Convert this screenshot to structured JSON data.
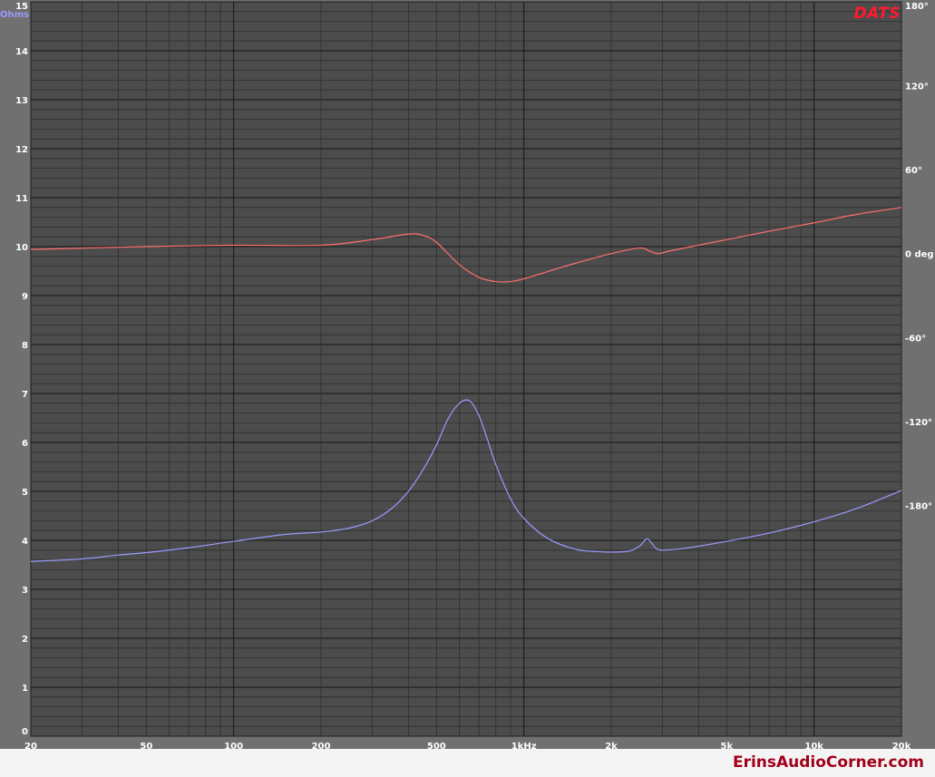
{
  "brand": "DATS",
  "watermark": "ErinsAudioCorner.com",
  "chart_data": {
    "type": "line",
    "x_scale": "log",
    "xlim": [
      20,
      20000
    ],
    "x_ticks": [
      {
        "v": 20,
        "label": "20"
      },
      {
        "v": 50,
        "label": "50"
      },
      {
        "v": 100,
        "label": "100"
      },
      {
        "v": 200,
        "label": "200"
      },
      {
        "v": 500,
        "label": "500"
      },
      {
        "v": 1000,
        "label": "1kHz"
      },
      {
        "v": 2000,
        "label": "2k"
      },
      {
        "v": 5000,
        "label": "5k"
      },
      {
        "v": 10000,
        "label": "10k"
      },
      {
        "v": 20000,
        "label": "20k"
      }
    ],
    "y_left": {
      "label": "Ohms",
      "min": 0,
      "max": 15,
      "ticks": [
        "0",
        "1",
        "2",
        "3",
        "4",
        "5",
        "6",
        "7",
        "8",
        "9",
        "10",
        "11",
        "12",
        "13",
        "14",
        "15"
      ]
    },
    "y_right": {
      "label": "deg",
      "min": -345,
      "max": 180,
      "ticks": [
        {
          "v": 180,
          "label": "180°"
        },
        {
          "v": 120,
          "label": "120°"
        },
        {
          "v": 60,
          "label": "60°"
        },
        {
          "v": 0,
          "label": "0 deg"
        },
        {
          "v": -60,
          "label": "-60°"
        },
        {
          "v": -120,
          "label": "-120°"
        },
        {
          "v": -180,
          "label": "-180°"
        }
      ]
    },
    "grid": true,
    "series": [
      {
        "axis": "left",
        "color": "#9a9aff",
        "x": [
          20,
          30,
          40,
          50,
          70,
          100,
          150,
          200,
          250,
          300,
          350,
          400,
          450,
          500,
          550,
          600,
          650,
          700,
          750,
          800,
          900,
          1000,
          1200,
          1500,
          1800,
          2000,
          2300,
          2500,
          2650,
          2750,
          2850,
          3000,
          3500,
          4000,
          5000,
          7000,
          10000,
          14000,
          20000
        ],
        "values": [
          3.57,
          3.62,
          3.7,
          3.75,
          3.85,
          3.98,
          4.12,
          4.17,
          4.25,
          4.4,
          4.65,
          5.0,
          5.45,
          5.95,
          6.5,
          6.8,
          6.85,
          6.55,
          6.05,
          5.55,
          4.85,
          4.45,
          4.05,
          3.82,
          3.77,
          3.76,
          3.78,
          3.88,
          4.03,
          3.95,
          3.84,
          3.8,
          3.83,
          3.88,
          3.98,
          4.15,
          4.38,
          4.65,
          5.02
        ]
      },
      {
        "axis": "right",
        "color": "#ff6f6f",
        "x": [
          20,
          50,
          100,
          200,
          300,
          400,
          450,
          500,
          600,
          700,
          800,
          900,
          1000,
          1200,
          1500,
          2000,
          2500,
          2700,
          2900,
          3200,
          4000,
          5000,
          7000,
          10000,
          14000,
          20000
        ],
        "values": [
          3,
          5,
          6,
          6,
          10,
          14,
          13,
          8,
          -8,
          -17,
          -20,
          -20,
          -18,
          -13,
          -7,
          0,
          4,
          2,
          0,
          2,
          6,
          10,
          16,
          22,
          28,
          33
        ]
      }
    ]
  }
}
